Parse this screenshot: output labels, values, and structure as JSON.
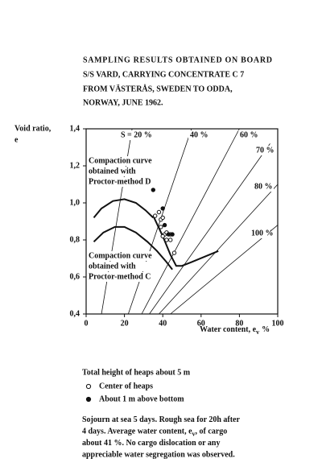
{
  "header": {
    "lines": [
      "SAMPLING RESULTS OBTAINED ON BOARD",
      "S/S VARD, CARRYING CONCENTRATE C 7",
      "FROM VÄSTERÅS,  SWEDEN TO ODDA,",
      "NORWAY, JUNE 1962."
    ]
  },
  "chart_data": {
    "type": "scatter",
    "ylabel": [
      "Void ratio,",
      "e"
    ],
    "xlabel": [
      "Water content, e",
      "v",
      "%"
    ],
    "xlim": [
      0,
      100
    ],
    "ylim": [
      0.4,
      1.4
    ],
    "xticks": [
      0,
      20,
      40,
      60,
      80,
      100
    ],
    "yticks": [
      {
        "value": 0.4,
        "label": "0,4"
      },
      {
        "value": 0.6,
        "label": "0,6"
      },
      {
        "value": 0.8,
        "label": "0,8"
      },
      {
        "value": 1.0,
        "label": "1,0"
      },
      {
        "value": 1.2,
        "label": "1,2"
      },
      {
        "value": 1.4,
        "label": "1,4"
      }
    ],
    "saturation_lines": [
      {
        "name": "S = 20 %",
        "x": [
          8,
          24
        ],
        "values": [
          0.4,
          1.4
        ]
      },
      {
        "name": "40 %",
        "x": [
          22,
          55
        ],
        "values": [
          0.4,
          1.4
        ]
      },
      {
        "name": "60 %",
        "x": [
          29,
          80
        ],
        "values": [
          0.4,
          1.4
        ]
      },
      {
        "name": "70 %",
        "x": [
          33,
          96
        ],
        "values": [
          0.4,
          1.32
        ]
      },
      {
        "name": "80 %",
        "x": [
          38,
          100
        ],
        "values": [
          0.4,
          1.1
        ]
      },
      {
        "name": "100 %",
        "x": [
          44,
          100
        ],
        "values": [
          0.4,
          0.88
        ]
      }
    ],
    "curves": [
      {
        "label": [
          "Compaction curve",
          "obtained with",
          "Proctor-method D"
        ],
        "x": [
          4,
          8,
          14,
          20,
          26,
          31,
          35
        ],
        "values": [
          0.92,
          0.97,
          1.01,
          1.02,
          1.0,
          0.96,
          0.92
        ]
      },
      {
        "label": [
          "Compaction curve",
          "obtained with",
          "Proctor-method C"
        ],
        "x": [
          4,
          9,
          15,
          20,
          26,
          32,
          37,
          42,
          45
        ],
        "values": [
          0.79,
          0.84,
          0.87,
          0.87,
          0.84,
          0.79,
          0.74,
          0.68,
          0.64
        ]
      },
      {
        "x": [
          35,
          40,
          44,
          47,
          50,
          55,
          62,
          69
        ],
        "values": [
          0.93,
          0.82,
          0.72,
          0.66,
          0.66,
          0.68,
          0.71,
          0.74
        ]
      }
    ],
    "series": [
      {
        "name": "Center of heaps",
        "marker": "open",
        "x": [
          36,
          38,
          39,
          40,
          39,
          41,
          40,
          42,
          42,
          44,
          46,
          44
        ],
        "values": [
          0.93,
          0.95,
          0.91,
          0.92,
          0.87,
          0.83,
          0.82,
          0.8,
          0.84,
          0.8,
          0.73,
          0.83
        ]
      },
      {
        "name": "About 1 m above bottom",
        "marker": "filled",
        "x": [
          35,
          40,
          41,
          43,
          45
        ],
        "values": [
          1.07,
          0.97,
          0.88,
          0.83,
          0.83
        ]
      }
    ]
  },
  "notes": {
    "heaps": "Total height of heaps about 5 m",
    "lines": [
      [
        "Sojourn at sea 5 days.  Rough sea for 20h after"
      ],
      [
        "4 days.  Average water content, e",
        "v",
        ", of cargo"
      ],
      [
        "about 41 %.  No cargo dislocation or any"
      ],
      [
        "appreciable water segregation was observed."
      ]
    ]
  }
}
